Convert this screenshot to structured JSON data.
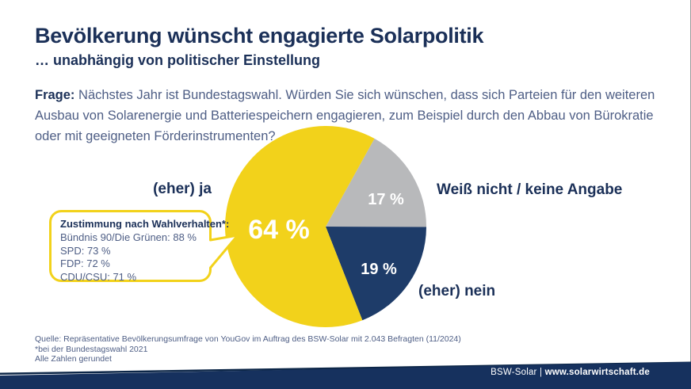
{
  "header": {
    "title": "Bevölkerung wünscht engagierte Solarpolitik",
    "subtitle": "… unabhängig von politischer Einstellung"
  },
  "question": {
    "label": "Frage:",
    "lines": [
      " Nächstes Jahr ist Bundestagswahl. Würden Sie sich wünschen, dass sich Parteien für den weiteren",
      "Ausbau von Solarenergie und Batteriespeichern engagieren, zum Beispiel durch den Abbau von Bürokratie",
      "oder mit geeigneten Förderinstrumenten?"
    ]
  },
  "chart_data": {
    "type": "pie",
    "unit": "%",
    "total": 100,
    "start_angle_deg": 29,
    "legend_position": "around",
    "slices": [
      {
        "id": "weiss-nicht",
        "label": "Weiß nicht / keine Angabe",
        "value": 17,
        "display": "17 %",
        "color": "#B8B9BB"
      },
      {
        "id": "nein",
        "label": "(eher) nein",
        "value": 19,
        "display": "19 %",
        "color": "#1E3C69"
      },
      {
        "id": "ja",
        "label": "(eher) ja",
        "value": 64,
        "display": "64 %",
        "color": "#F2D21B"
      }
    ],
    "annotation": {
      "title": "Zustimmung nach Wahlverhalten*:",
      "items": [
        {
          "party": "Bündnis 90/Die Grünen",
          "value": 88,
          "display": "Bündnis 90/Die Grünen: 88 %"
        },
        {
          "party": "SPD",
          "value": 73,
          "display": "SPD: 73 %"
        },
        {
          "party": "FDP",
          "value": 72,
          "display": "FDP: 72 %"
        },
        {
          "party": "CDU/CSU",
          "value": 71,
          "display": "CDU/CSU: 71 %"
        }
      ]
    }
  },
  "source": {
    "lines": [
      "Quelle: Repräsentative Bevölkerungsumfrage von YouGov im Auftrag des BSW-Solar mit 2.043 Befragten (11/2024)",
      "*bei der Bundestagswahl 2021",
      "Alle Zahlen gerundet"
    ]
  },
  "footer": {
    "org": "BSW-Solar",
    "separator": "|",
    "url": "www.solarwirtschaft.de"
  },
  "colors": {
    "navy_dark": "#1B3058",
    "navy_slice": "#1E3C69",
    "footer_navy": "#16315E",
    "footer_accent": "#0D2748",
    "yellow": "#F2D21B",
    "gray": "#B8B9BB",
    "text_slate": "#4E5E85",
    "white": "#FFFFFF"
  }
}
